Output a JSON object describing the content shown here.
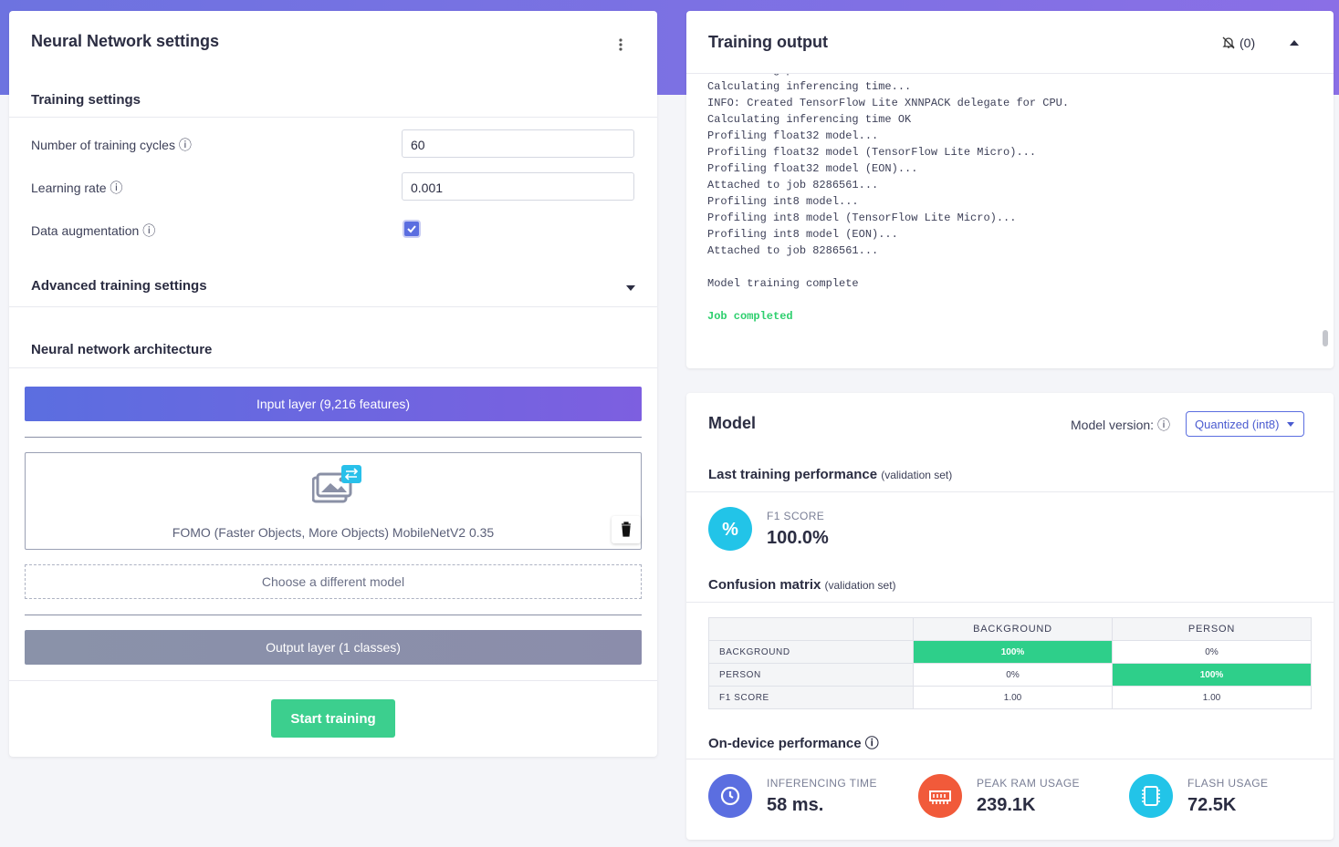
{
  "settings": {
    "title": "Neural Network settings",
    "training_title": "Training settings",
    "fields": [
      {
        "label": "Number of training cycles",
        "value": "60"
      },
      {
        "label": "Learning rate",
        "value": "0.001"
      },
      {
        "label": "Data augmentation",
        "checked": true
      }
    ],
    "advanced_title": "Advanced training settings",
    "architecture": {
      "title": "Neural network architecture",
      "input_layer": "Input layer (9,216 features)",
      "model": "FOMO (Faster Objects, More Objects) MobileNetV2 0.35",
      "choose": "Choose a different model",
      "output_layer": "Output layer (1 classes)"
    },
    "start_button": "Start training"
  },
  "training_output": {
    "title": "Training output",
    "notifications": "(0)",
    "log": [
      "Calculating performance metrics...",
      "Calculating inferencing time...",
      "INFO: Created TensorFlow Lite XNNPACK delegate for CPU.",
      "Calculating inferencing time OK",
      "Profiling float32 model...",
      "Profiling float32 model (TensorFlow Lite Micro)...",
      "Profiling float32 model (EON)...",
      "Attached to job 8286561...",
      "Profiling int8 model...",
      "Profiling int8 model (TensorFlow Lite Micro)...",
      "Profiling int8 model (EON)...",
      "Attached to job 8286561..."
    ],
    "complete": "Model training complete",
    "status": "Job completed"
  },
  "model": {
    "title": "Model",
    "version_label": "Model version:",
    "version": "Quantized (int8)",
    "last_training": {
      "title": "Last training performance",
      "note": "(validation set)"
    },
    "f1": {
      "label": "F1 SCORE",
      "value": "100.0%"
    },
    "confusion": {
      "title": "Confusion matrix",
      "note": "(validation set)",
      "columns": [
        "BACKGROUND",
        "PERSON"
      ],
      "rows": [
        {
          "label": "BACKGROUND",
          "cells": [
            "100%",
            "0%"
          ]
        },
        {
          "label": "PERSON",
          "cells": [
            "0%",
            "100%"
          ]
        },
        {
          "label": "F1 SCORE",
          "cells": [
            "1.00",
            "1.00"
          ]
        }
      ]
    },
    "on_device": {
      "title": "On-device performance",
      "metrics": [
        {
          "label": "INFERENCING TIME",
          "value": "58 ms."
        },
        {
          "label": "PEAK RAM USAGE",
          "value": "239.1K"
        },
        {
          "label": "FLASH USAGE",
          "value": "72.5K"
        }
      ]
    }
  }
}
